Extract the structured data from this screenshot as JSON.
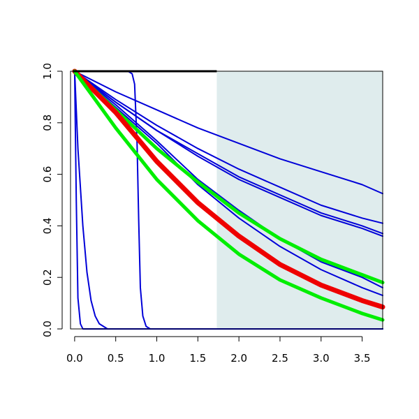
{
  "chart_data": {
    "type": "line",
    "title": "",
    "xlabel": "",
    "ylabel": "",
    "xlim": [
      -0.05,
      3.75
    ],
    "ylim": [
      0.0,
      1.0
    ],
    "x_ticks": [
      "0.0",
      "0.5",
      "1.0",
      "1.5",
      "2.0",
      "2.5",
      "3.0",
      "3.5"
    ],
    "y_ticks": [
      "0.0",
      "0.2",
      "0.4",
      "0.6",
      "0.8",
      "1.0"
    ],
    "grid": false,
    "legend": "none",
    "shaded_region": {
      "x_from": 1.73,
      "x_to": 3.75,
      "color": "#dfeced"
    },
    "top_reference_line": {
      "y": 1.0,
      "x_from": -0.02,
      "x_to": 1.73,
      "color": "#000000"
    },
    "series": [
      {
        "color": "#0000d8",
        "width": 2,
        "points": [
          [
            0.0,
            1.0
          ],
          [
            0.02,
            0.5
          ],
          [
            0.04,
            0.12
          ],
          [
            0.07,
            0.02
          ],
          [
            0.1,
            0.0
          ],
          [
            3.75,
            0.0
          ]
        ]
      },
      {
        "color": "#0000d8",
        "width": 2,
        "points": [
          [
            0.0,
            1.0
          ],
          [
            0.04,
            0.7
          ],
          [
            0.1,
            0.4
          ],
          [
            0.15,
            0.22
          ],
          [
            0.2,
            0.11
          ],
          [
            0.25,
            0.05
          ],
          [
            0.3,
            0.02
          ],
          [
            0.4,
            0.0
          ],
          [
            3.75,
            0.0
          ]
        ]
      },
      {
        "color": "#0000d8",
        "width": 2,
        "points": [
          [
            0.0,
            1.0
          ],
          [
            0.65,
            1.0
          ],
          [
            0.7,
            0.99
          ],
          [
            0.73,
            0.95
          ],
          [
            0.76,
            0.72
          ],
          [
            0.78,
            0.42
          ],
          [
            0.8,
            0.16
          ],
          [
            0.83,
            0.05
          ],
          [
            0.87,
            0.01
          ],
          [
            0.92,
            0.0
          ],
          [
            3.75,
            0.0
          ]
        ]
      },
      {
        "color": "#0000d8",
        "width": 2,
        "points": [
          [
            0.0,
            1.0
          ],
          [
            0.5,
            0.92
          ],
          [
            1.0,
            0.85
          ],
          [
            1.5,
            0.78
          ],
          [
            2.0,
            0.72
          ],
          [
            2.5,
            0.66
          ],
          [
            3.0,
            0.61
          ],
          [
            3.5,
            0.56
          ],
          [
            3.75,
            0.525
          ]
        ]
      },
      {
        "color": "#0000d8",
        "width": 2,
        "points": [
          [
            0.0,
            1.0
          ],
          [
            0.5,
            0.89
          ],
          [
            1.0,
            0.79
          ],
          [
            1.5,
            0.7
          ],
          [
            2.0,
            0.62
          ],
          [
            2.5,
            0.55
          ],
          [
            3.0,
            0.48
          ],
          [
            3.5,
            0.43
          ],
          [
            3.75,
            0.41
          ]
        ]
      },
      {
        "color": "#0000d8",
        "width": 2,
        "points": [
          [
            0.0,
            1.0
          ],
          [
            0.5,
            0.88
          ],
          [
            1.0,
            0.77
          ],
          [
            1.5,
            0.68
          ],
          [
            2.0,
            0.59
          ],
          [
            2.5,
            0.52
          ],
          [
            3.0,
            0.45
          ],
          [
            3.5,
            0.4
          ],
          [
            3.75,
            0.37
          ]
        ]
      },
      {
        "color": "#0000d8",
        "width": 2,
        "points": [
          [
            0.0,
            1.0
          ],
          [
            0.5,
            0.88
          ],
          [
            1.0,
            0.77
          ],
          [
            1.5,
            0.67
          ],
          [
            2.0,
            0.58
          ],
          [
            2.5,
            0.51
          ],
          [
            3.0,
            0.44
          ],
          [
            3.5,
            0.39
          ],
          [
            3.75,
            0.36
          ]
        ]
      },
      {
        "color": "#0000d8",
        "width": 2,
        "points": [
          [
            0.0,
            1.0
          ],
          [
            0.5,
            0.87
          ],
          [
            1.0,
            0.73
          ],
          [
            1.5,
            0.58
          ],
          [
            2.0,
            0.46
          ],
          [
            2.5,
            0.35
          ],
          [
            3.0,
            0.26
          ],
          [
            3.5,
            0.2
          ],
          [
            3.75,
            0.16
          ]
        ]
      },
      {
        "color": "#0000d8",
        "width": 2,
        "points": [
          [
            0.0,
            1.0
          ],
          [
            0.5,
            0.86
          ],
          [
            1.0,
            0.72
          ],
          [
            1.5,
            0.56
          ],
          [
            2.0,
            0.43
          ],
          [
            2.5,
            0.32
          ],
          [
            3.0,
            0.23
          ],
          [
            3.5,
            0.16
          ],
          [
            3.75,
            0.13
          ]
        ]
      },
      {
        "color": "#00ee00",
        "width": 5,
        "points": [
          [
            0.0,
            1.0
          ],
          [
            0.5,
            0.85
          ],
          [
            1.0,
            0.7
          ],
          [
            1.5,
            0.57
          ],
          [
            2.0,
            0.45
          ],
          [
            2.5,
            0.35
          ],
          [
            3.0,
            0.27
          ],
          [
            3.5,
            0.21
          ],
          [
            3.75,
            0.18
          ]
        ]
      },
      {
        "color": "#ee0000",
        "width": 7,
        "points": [
          [
            0.0,
            1.0
          ],
          [
            0.5,
            0.84
          ],
          [
            1.0,
            0.65
          ],
          [
            1.5,
            0.49
          ],
          [
            2.0,
            0.36
          ],
          [
            2.5,
            0.25
          ],
          [
            3.0,
            0.17
          ],
          [
            3.5,
            0.11
          ],
          [
            3.75,
            0.085
          ]
        ]
      },
      {
        "color": "#00ee00",
        "width": 5,
        "points": [
          [
            0.0,
            1.0
          ],
          [
            0.5,
            0.78
          ],
          [
            1.0,
            0.58
          ],
          [
            1.5,
            0.42
          ],
          [
            2.0,
            0.29
          ],
          [
            2.5,
            0.19
          ],
          [
            3.0,
            0.12
          ],
          [
            3.5,
            0.06
          ],
          [
            3.75,
            0.035
          ]
        ]
      }
    ]
  }
}
